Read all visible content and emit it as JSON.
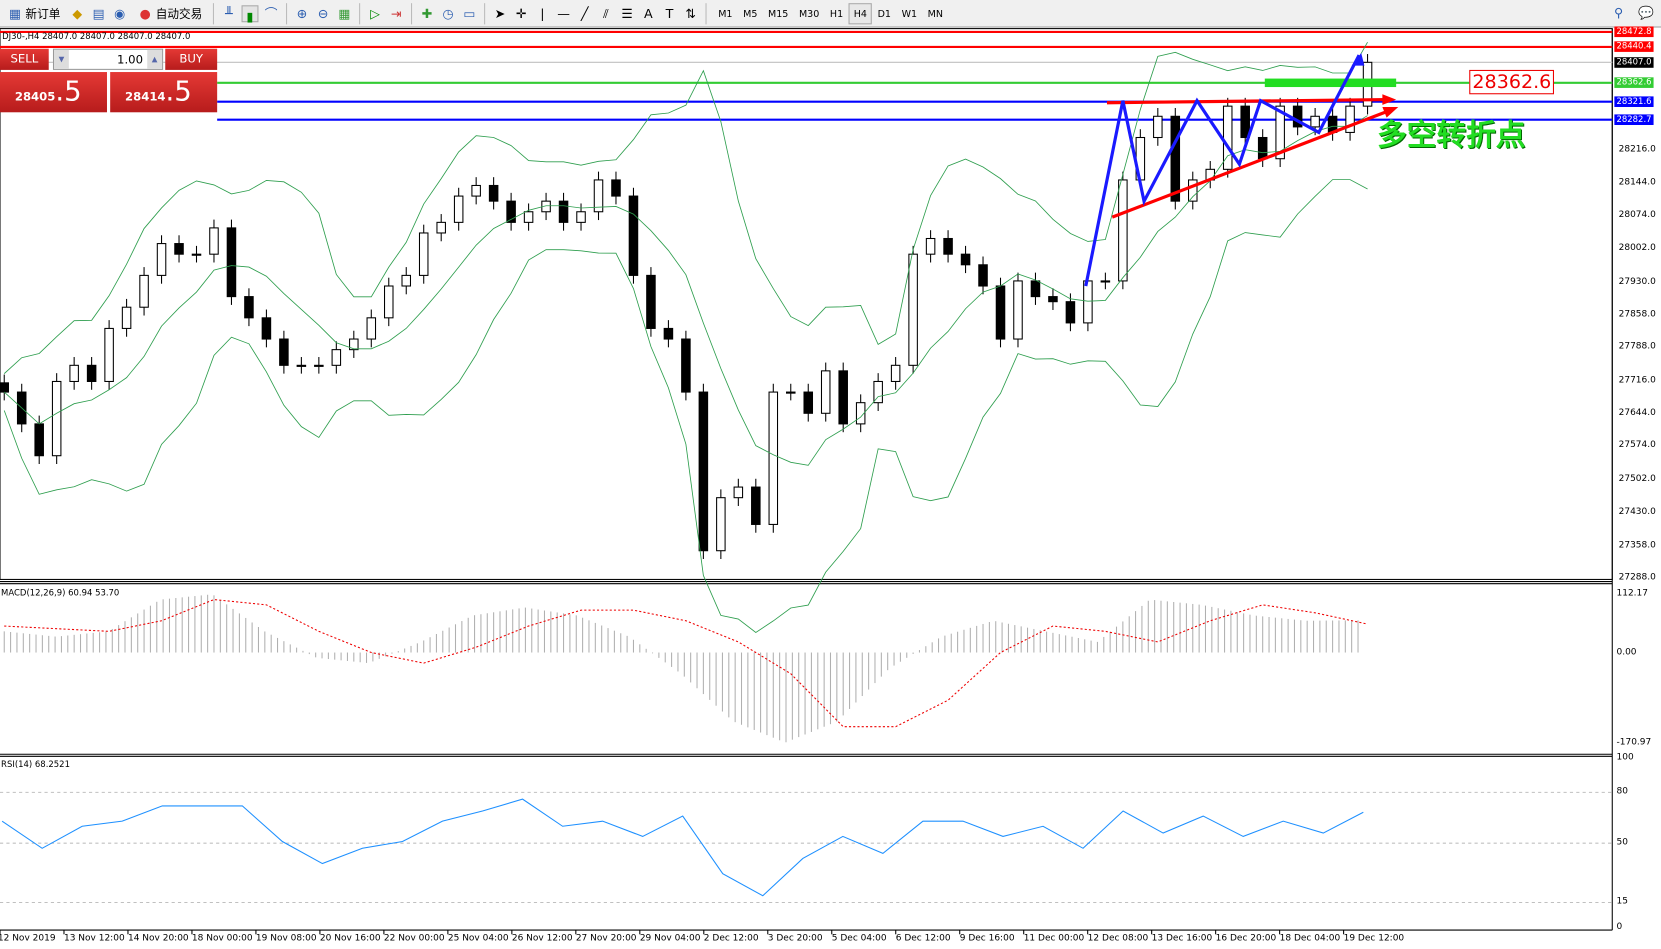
{
  "toolbar": {
    "new_order": "新订单",
    "auto_trading": "自动交易",
    "timeframes": [
      "M1",
      "M5",
      "M15",
      "M30",
      "H1",
      "H4",
      "D1",
      "W1",
      "MN"
    ],
    "active_timeframe": "H4"
  },
  "symbol_line": "DJ30-,H4  28407.0 28407.0 28407.0 28407.0",
  "trade_panel": {
    "sell_label": "SELL",
    "buy_label": "BUY",
    "lot": "1.00",
    "sell_price_main": "28405",
    "sell_price_big": ".5",
    "buy_price_main": "28414",
    "buy_price_big": ".5"
  },
  "price_levels": [
    {
      "value": "28472.8",
      "color": "#ff0000"
    },
    {
      "value": "28440.4",
      "color": "#ff0000"
    },
    {
      "value": "28407.0",
      "color": "#000000"
    },
    {
      "value": "28362.6",
      "color": "#33cc33"
    },
    {
      "value": "28321.6",
      "color": "#0000ff"
    },
    {
      "value": "28282.7",
      "color": "#0000ff"
    }
  ],
  "annotation_price_label": "28362.6",
  "annotation_text": "多空转折点",
  "chart_data": {
    "type": "candlestick",
    "symbol": "DJ30-",
    "timeframe": "H4",
    "y_ticks": [
      "28216.0",
      "28144.0",
      "28074.0",
      "28002.0",
      "27930.0",
      "27858.0",
      "27788.0",
      "27716.0",
      "27644.0",
      "27574.0",
      "27502.0",
      "27430.0",
      "27358.0",
      "27288.0"
    ],
    "ylim": [
      27288,
      28472.8
    ],
    "x_ticks": [
      "12 Nov 2019",
      "13 Nov 12:00",
      "14 Nov 20:00",
      "18 Nov 00:00",
      "19 Nov 08:00",
      "20 Nov 16:00",
      "22 Nov 00:00",
      "25 Nov 04:00",
      "26 Nov 12:00",
      "27 Nov 20:00",
      "29 Nov 04:00",
      "2 Dec 12:00",
      "3 Dec 20:00",
      "5 Dec 04:00",
      "6 Dec 12:00",
      "9 Dec 16:00",
      "11 Dec 00:00",
      "12 Dec 08:00",
      "13 Dec 16:00",
      "16 Dec 20:00",
      "18 Dec 04:00",
      "19 Dec 12:00"
    ],
    "closes": [
      27692,
      27623,
      27554,
      27715,
      27750,
      27715,
      27830,
      27876,
      27945,
      28014,
      27991,
      27991,
      28048,
      27899,
      27853,
      27807,
      27750,
      27750,
      27750,
      27784,
      27807,
      27853,
      27922,
      27945,
      28037,
      28060,
      28117,
      28140,
      28106,
      28060,
      28083,
      28106,
      28060,
      28083,
      28152,
      28117,
      27945,
      27830,
      27807,
      27692,
      27348,
      27463,
      27486,
      27405,
      27692,
      27692,
      27646,
      27738,
      27623,
      27669,
      27715,
      27750,
      27991,
      28025,
      27991,
      27968,
      27922,
      27807,
      27933,
      27899,
      27888,
      27842,
      27933,
      27933,
      28152,
      28244,
      28290,
      28106,
      28152,
      28175,
      28312,
      28244,
      28198,
      28312,
      28267,
      28290,
      28255,
      28312,
      28407
    ],
    "bollinger": "visible",
    "indicators": [
      {
        "name": "MACD(12,26,9)",
        "label": "MACD(12,26,9) 60.94 53.70",
        "ylim": [
          -170.97,
          112.17
        ],
        "y_ticks": [
          "112.17",
          "0.00",
          "-170.97"
        ],
        "histogram": [
          40,
          30,
          40,
          100,
          110,
          40,
          -10,
          -20,
          20,
          70,
          85,
          70,
          30,
          -40,
          -130,
          -170,
          -130,
          -30,
          30,
          60,
          40,
          20,
          100,
          90,
          70,
          60,
          60.94
        ],
        "signal": [
          50,
          45,
          40,
          60,
          100,
          90,
          40,
          0,
          -20,
          10,
          50,
          80,
          80,
          60,
          20,
          -40,
          -140,
          -140,
          -90,
          0,
          50,
          40,
          20,
          60,
          90,
          75,
          53.7
        ]
      },
      {
        "name": "RSI(14)",
        "label": "RSI(14) 68.2521",
        "ylim": [
          0,
          100
        ],
        "y_ticks": [
          "100",
          "80",
          "50",
          "15",
          "0"
        ],
        "values": [
          63,
          47,
          60,
          63,
          72,
          72,
          72,
          51,
          38,
          47,
          51,
          63,
          69,
          76,
          60,
          63,
          54,
          66,
          32,
          19,
          41,
          54,
          44,
          63,
          63,
          54,
          60,
          47,
          69,
          56,
          66,
          54,
          63,
          56,
          68.25
        ]
      }
    ]
  }
}
